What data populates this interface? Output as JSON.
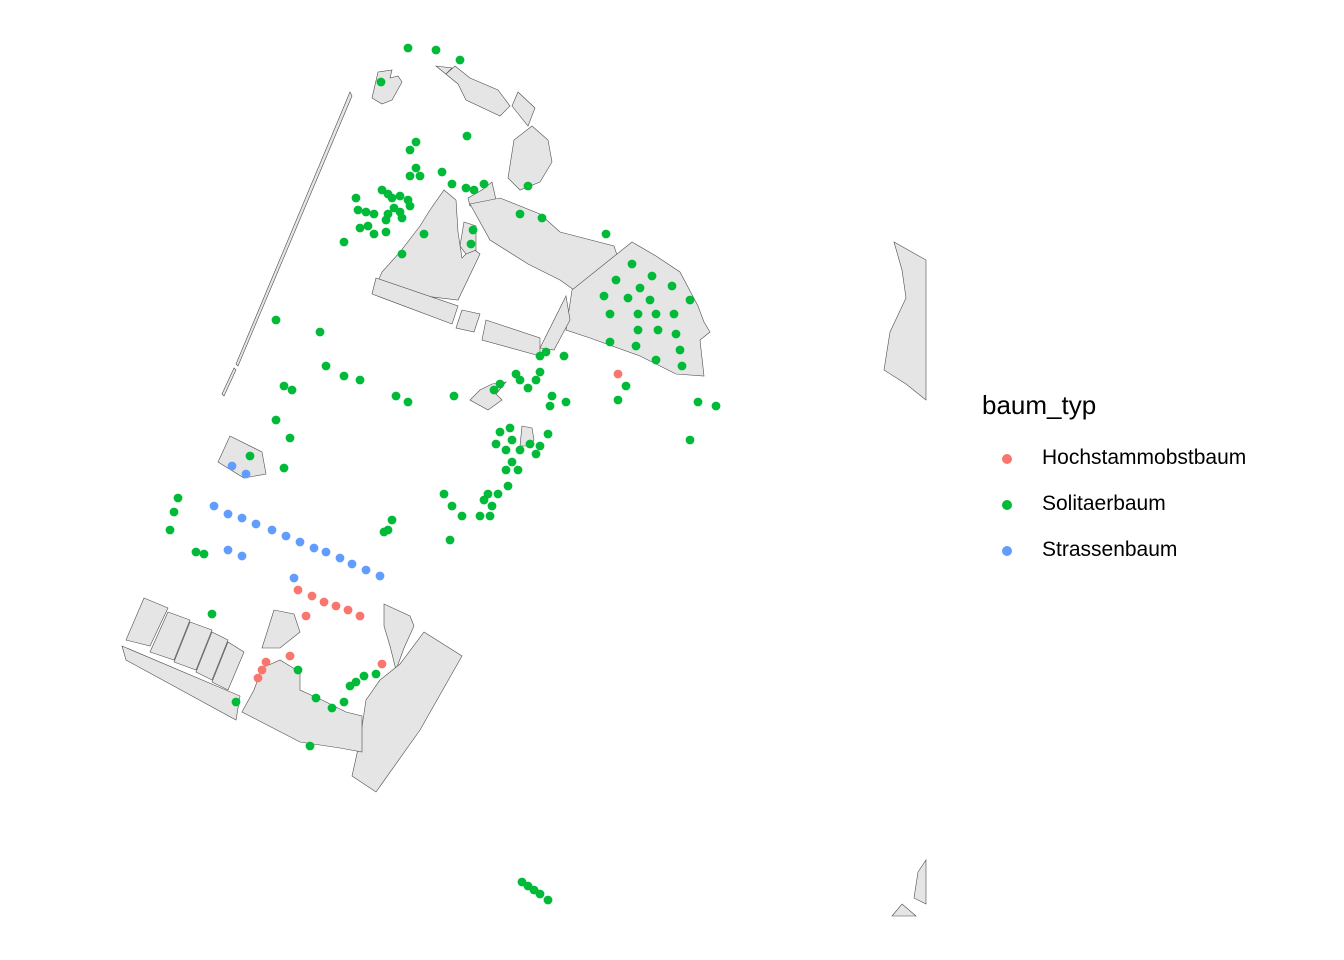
{
  "legend": {
    "title": "baum_typ",
    "items": [
      {
        "label": "Hochstammobstbaum",
        "color": "#F8766D"
      },
      {
        "label": "Solitaerbaum",
        "color": "#00BA38"
      },
      {
        "label": "Strassenbaum",
        "color": "#619CFF"
      }
    ]
  },
  "colors": {
    "polygon_fill": "#e5e5e5",
    "polygon_stroke": "#4d4d4d",
    "background": "#ffffff"
  }
}
